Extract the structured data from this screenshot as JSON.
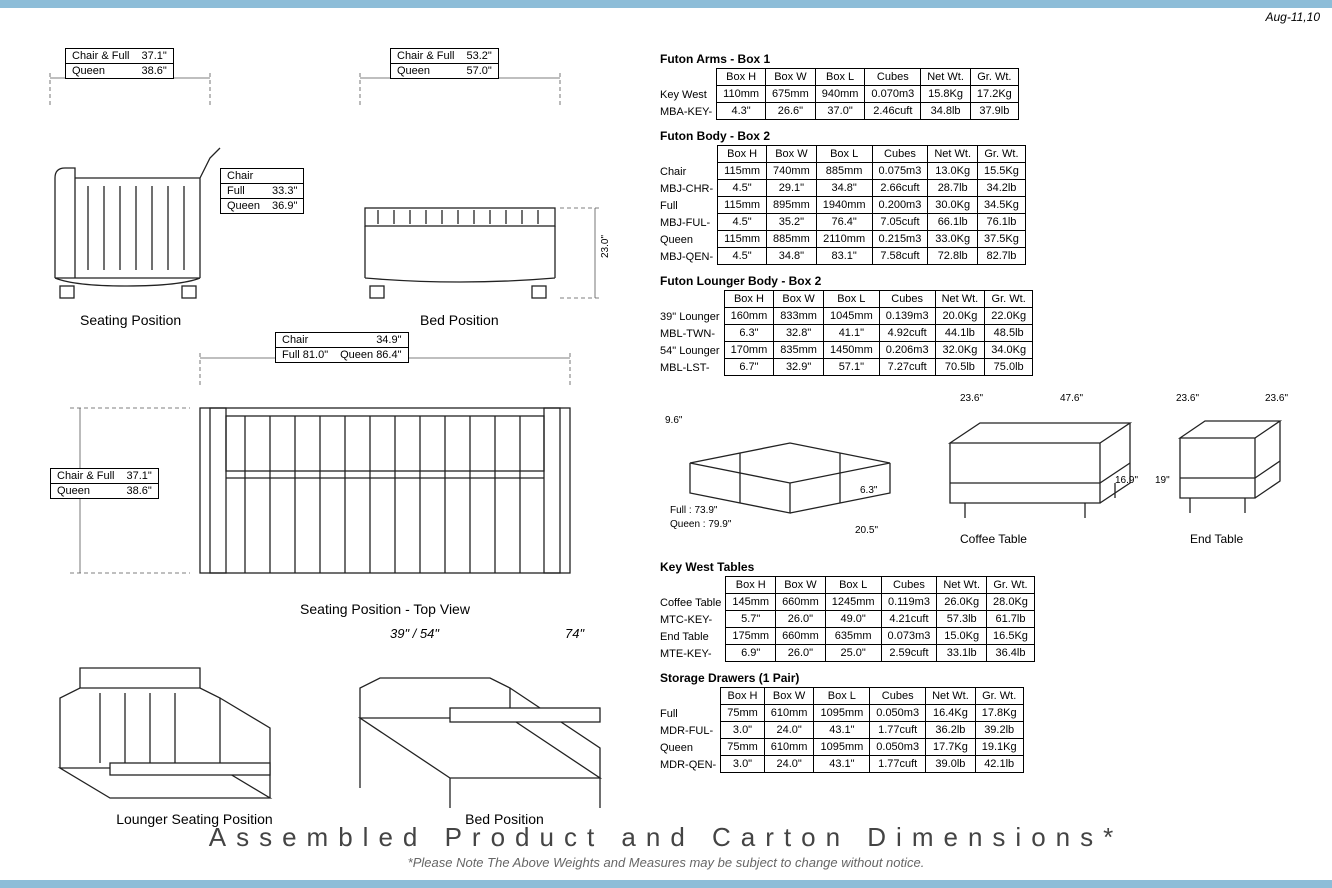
{
  "date": "Aug-11,10",
  "colors": {
    "bar": "#8dbdd8",
    "text": "#000",
    "gray": "#666"
  },
  "dimbox_seating_top": {
    "rows": [
      [
        "Chair & Full",
        "37.1\""
      ],
      [
        "Queen",
        "38.6\""
      ]
    ]
  },
  "dimbox_bed_top": {
    "rows": [
      [
        "Chair & Full",
        "53.2\""
      ],
      [
        "Queen",
        "57.0\""
      ]
    ]
  },
  "dimbox_seating_side": {
    "rows": [
      [
        "Chair",
        ""
      ],
      [
        "Full",
        "33.3\""
      ],
      [
        "Queen",
        "36.9\""
      ]
    ]
  },
  "bed_height": "23.0\"",
  "label_seating": "Seating Position",
  "label_bed": "Bed Position",
  "dimbox_topview_top": {
    "rows": [
      [
        "Chair",
        "34.9\""
      ],
      [
        "Full   81.0\"",
        "Queen   86.4\""
      ]
    ]
  },
  "dimbox_topview_side": {
    "rows": [
      [
        "Chair & Full",
        "37.1\""
      ],
      [
        "Queen",
        "38.6\""
      ]
    ]
  },
  "label_topview": "Seating Position - Top View",
  "lounger_dim1": "39\" / 54\"",
  "lounger_dim2": "74\"",
  "label_lounger_seat": "Lounger Seating Position",
  "label_lounger_bed": "Bed Position",
  "tables": {
    "arms": {
      "title": "Futon Arms - Box 1",
      "headers": [
        "Box H",
        "Box W",
        "Box L",
        "Cubes",
        "Net Wt.",
        "Gr. Wt."
      ],
      "row_labels": [
        "Key West",
        "MBA-KEY-"
      ],
      "rows": [
        [
          "110mm",
          "675mm",
          "940mm",
          "0.070m3",
          "15.8Kg",
          "17.2Kg"
        ],
        [
          "4.3\"",
          "26.6\"",
          "37.0\"",
          "2.46cuft",
          "34.8lb",
          "37.9lb"
        ]
      ]
    },
    "body": {
      "title": "Futon Body - Box 2",
      "headers": [
        "Box H",
        "Box W",
        "Box L",
        "Cubes",
        "Net Wt.",
        "Gr. Wt."
      ],
      "row_labels": [
        "Chair",
        "MBJ-CHR-",
        "Full",
        "MBJ-FUL-",
        "Queen",
        "MBJ-QEN-"
      ],
      "rows": [
        [
          "115mm",
          "740mm",
          "885mm",
          "0.075m3",
          "13.0Kg",
          "15.5Kg"
        ],
        [
          "4.5\"",
          "29.1\"",
          "34.8\"",
          "2.66cuft",
          "28.7lb",
          "34.2lb"
        ],
        [
          "115mm",
          "895mm",
          "1940mm",
          "0.200m3",
          "30.0Kg",
          "34.5Kg"
        ],
        [
          "4.5\"",
          "35.2\"",
          "76.4\"",
          "7.05cuft",
          "66.1lb",
          "76.1lb"
        ],
        [
          "115mm",
          "885mm",
          "2110mm",
          "0.215m3",
          "33.0Kg",
          "37.5Kg"
        ],
        [
          "4.5\"",
          "34.8\"",
          "83.1\"",
          "7.58cuft",
          "72.8lb",
          "82.7lb"
        ]
      ]
    },
    "lounger": {
      "title": "Futon Lounger Body - Box 2",
      "headers": [
        "Box H",
        "Box W",
        "Box L",
        "Cubes",
        "Net Wt.",
        "Gr. Wt."
      ],
      "row_labels": [
        "39\" Lounger",
        "MBL-TWN-",
        "54\" Lounger",
        "MBL-LST-"
      ],
      "rows": [
        [
          "160mm",
          "833mm",
          "1045mm",
          "0.139m3",
          "20.0Kg",
          "22.0Kg"
        ],
        [
          "6.3\"",
          "32.8\"",
          "41.1\"",
          "4.92cuft",
          "44.1lb",
          "48.5lb"
        ],
        [
          "170mm",
          "835mm",
          "1450mm",
          "0.206m3",
          "32.0Kg",
          "34.0Kg"
        ],
        [
          "6.7\"",
          "32.9\"",
          "57.1\"",
          "7.27cuft",
          "70.5lb",
          "75.0lb"
        ]
      ]
    },
    "tables_kw": {
      "title": "Key West Tables",
      "headers": [
        "Box H",
        "Box W",
        "Box L",
        "Cubes",
        "Net Wt.",
        "Gr. Wt."
      ],
      "row_labels": [
        "Coffee Table",
        "MTC-KEY-",
        "End Table",
        "MTE-KEY-"
      ],
      "rows": [
        [
          "145mm",
          "660mm",
          "1245mm",
          "0.119m3",
          "26.0Kg",
          "28.0Kg"
        ],
        [
          "5.7\"",
          "26.0\"",
          "49.0\"",
          "4.21cuft",
          "57.3lb",
          "61.7lb"
        ],
        [
          "175mm",
          "660mm",
          "635mm",
          "0.073m3",
          "15.0Kg",
          "16.5Kg"
        ],
        [
          "6.9\"",
          "26.0\"",
          "25.0\"",
          "2.59cuft",
          "33.1lb",
          "36.4lb"
        ]
      ]
    },
    "drawers": {
      "title": "Storage Drawers (1 Pair)",
      "headers": [
        "Box H",
        "Box W",
        "Box L",
        "Cubes",
        "Net Wt.",
        "Gr. Wt."
      ],
      "row_labels": [
        "Full",
        "MDR-FUL-",
        "Queen",
        "MDR-QEN-"
      ],
      "rows": [
        [
          "75mm",
          "610mm",
          "1095mm",
          "0.050m3",
          "16.4Kg",
          "17.8Kg"
        ],
        [
          "3.0\"",
          "24.0\"",
          "43.1\"",
          "1.77cuft",
          "36.2lb",
          "39.2lb"
        ],
        [
          "75mm",
          "610mm",
          "1095mm",
          "0.050m3",
          "17.7Kg",
          "19.1Kg"
        ],
        [
          "3.0\"",
          "24.0\"",
          "43.1\"",
          "1.77cuft",
          "39.0lb",
          "42.1lb"
        ]
      ]
    }
  },
  "mid_dims": {
    "drawer_h": "9.6\"",
    "drawer_w": "20.5\"",
    "drawer_d": "6.3\"",
    "drawer_full": "Full : 73.9\"",
    "drawer_queen": "Queen : 79.9\"",
    "coffee_w": "47.6\"",
    "coffee_d": "23.6\"",
    "coffee_h": "16.9\"",
    "coffee_label": "Coffee Table",
    "end_w": "23.6\"",
    "end_d": "23.6\"",
    "end_h": "19\"",
    "end_label": "End Table"
  },
  "footer_title": "Assembled Product and Carton Dimensions*",
  "footer_note": "*Please Note The Above Weights and Measures may be subject to change without notice."
}
